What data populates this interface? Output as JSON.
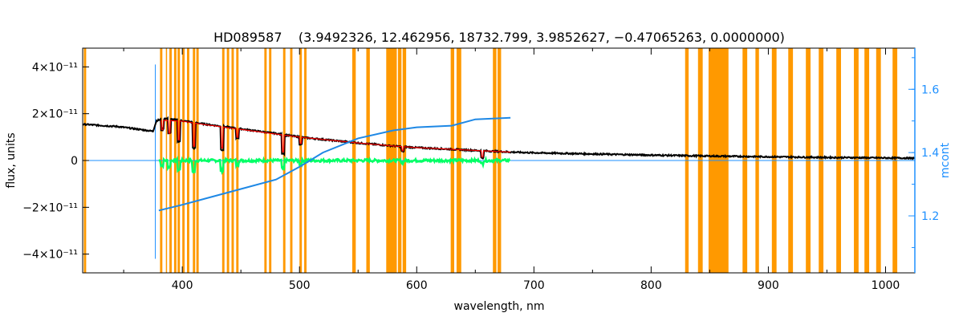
{
  "chart_data": {
    "type": "line",
    "title": "HD089587    (3.9492326, 12.462956, 18732.799, 3.9852627, −0.47065263, 0.0000000)",
    "xlabel": "wavelength, nm",
    "ylabel": "flux, units",
    "y2label": "mcont",
    "xlim": [
      315,
      1025
    ],
    "ylim": [
      -4.8e-11,
      4.8e-11
    ],
    "y2lim": [
      1.02,
      1.73
    ],
    "xticks": [
      400,
      500,
      600,
      700,
      800,
      900,
      1000
    ],
    "yticks": [
      {
        "value": 4e-11,
        "label": "4×10⁻¹¹"
      },
      {
        "value": 2e-11,
        "label": "2×10⁻¹¹"
      },
      {
        "value": 0,
        "label": "0"
      },
      {
        "value": -2e-11,
        "label": "−2×10⁻¹¹"
      },
      {
        "value": -4e-11,
        "label": "−4×10⁻¹¹"
      }
    ],
    "y2ticks": [
      1.2,
      1.4,
      1.6
    ],
    "colors": {
      "masks": "#ff9900",
      "observed": "#000000",
      "model": "#ff0000",
      "residual": "#00ff66",
      "mcont": "#1e88e5",
      "zero_line": "#1e90ff"
    },
    "masked_regions": [
      [
        316,
        318
      ],
      [
        381,
        383
      ],
      [
        386,
        387
      ],
      [
        389,
        391
      ],
      [
        393,
        395
      ],
      [
        396,
        398
      ],
      [
        400,
        402
      ],
      [
        404,
        406
      ],
      [
        409,
        411
      ],
      [
        412,
        414
      ],
      [
        434,
        436
      ],
      [
        438,
        440
      ],
      [
        442,
        444
      ],
      [
        446,
        448
      ],
      [
        470,
        472
      ],
      [
        474,
        476
      ],
      [
        486,
        488
      ],
      [
        492,
        494
      ],
      [
        500,
        502
      ],
      [
        504,
        506
      ],
      [
        545,
        548
      ],
      [
        557,
        560
      ],
      [
        574,
        583
      ],
      [
        584,
        587
      ],
      [
        588,
        591
      ],
      [
        629,
        632
      ],
      [
        634,
        638
      ],
      [
        665,
        668
      ],
      [
        669,
        672
      ],
      [
        829,
        832
      ],
      [
        840,
        844
      ],
      [
        849,
        866
      ],
      [
        878,
        882
      ],
      [
        889,
        892
      ],
      [
        903,
        907
      ],
      [
        917,
        921
      ],
      [
        932,
        936
      ],
      [
        943,
        947
      ],
      [
        958,
        962
      ],
      [
        973,
        977
      ],
      [
        982,
        986
      ],
      [
        992,
        996
      ],
      [
        1006,
        1010
      ]
    ],
    "series": [
      {
        "key": "observed",
        "axis": "left",
        "x": [
          315,
          330,
          345,
          360,
          375,
          378,
          385,
          400,
          420,
          450,
          480,
          500,
          520,
          550,
          580,
          600,
          630,
          650,
          680,
          700,
          750,
          800,
          850,
          900,
          950,
          1000,
          1025
        ],
        "y": [
          1.55e-11,
          1.5e-11,
          1.45e-11,
          1.35e-11,
          1.25e-11,
          1.7e-11,
          1.8e-11,
          1.7e-11,
          1.55e-11,
          1.35e-11,
          1.15e-11,
          1e-11,
          9e-12,
          7.5e-12,
          6.2e-12,
          5.5e-12,
          4.8e-12,
          4.3e-12,
          3.6e-12,
          3.3e-12,
          2.8e-12,
          2.3e-12,
          1.9e-12,
          1.6e-12,
          1.3e-12,
          1.1e-12,
          1e-12
        ]
      },
      {
        "key": "model",
        "axis": "left",
        "x": [
          382,
          400,
          420,
          450,
          480,
          500,
          520,
          550,
          580,
          600,
          630,
          650,
          680
        ],
        "y": [
          1.72e-11,
          1.68e-11,
          1.53e-11,
          1.33e-11,
          1.13e-11,
          1e-11,
          9e-12,
          7.5e-12,
          6.2e-12,
          5.5e-12,
          4.8e-12,
          4.3e-12,
          3.6e-12
        ]
      },
      {
        "key": "residual",
        "axis": "left",
        "x": [
          380,
          400,
          450,
          500,
          550,
          600,
          650,
          680
        ],
        "y": [
          0,
          0,
          0,
          0,
          0,
          0,
          0,
          0
        ]
      },
      {
        "key": "mcont",
        "axis": "right",
        "x": [
          380,
          400,
          430,
          450,
          480,
          500,
          520,
          550,
          580,
          600,
          630,
          650,
          680
        ],
        "y": [
          1.217,
          1.235,
          1.265,
          1.285,
          1.315,
          1.355,
          1.4,
          1.445,
          1.47,
          1.48,
          1.485,
          1.505,
          1.51
        ]
      }
    ],
    "absorption_lines": [
      {
        "x": 383,
        "depth": 4.5e-12
      },
      {
        "x": 389,
        "depth": 6e-12
      },
      {
        "x": 397,
        "depth": 9e-12
      },
      {
        "x": 410,
        "depth": 1.1e-11
      },
      {
        "x": 434,
        "depth": 1e-11
      },
      {
        "x": 447,
        "depth": 4e-12
      },
      {
        "x": 486,
        "depth": 8e-12
      },
      {
        "x": 501,
        "depth": 3e-12
      },
      {
        "x": 588,
        "depth": 2e-12
      },
      {
        "x": 656,
        "depth": 3e-12
      }
    ]
  }
}
